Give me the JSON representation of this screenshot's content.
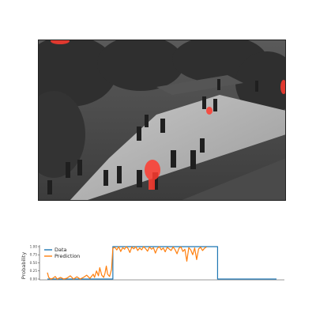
{
  "video_frame": {
    "description_icon": "surveillance-frame",
    "highlight_color": "#ff3b2f"
  },
  "chart_data": {
    "type": "line",
    "title": "",
    "xlabel": "",
    "ylabel": "Probability",
    "ylim": [
      0,
      1
    ],
    "yticks": [
      "0.00",
      "0.25",
      "0.50",
      "0.75",
      "1.00"
    ],
    "legend": {
      "placement": "top-left",
      "entries": [
        "Data",
        "Prediction"
      ]
    },
    "grid": false,
    "x": [
      0,
      1,
      2,
      3,
      4,
      5,
      6,
      7,
      8,
      9,
      10,
      11,
      12,
      13,
      14,
      15,
      16,
      17,
      18,
      19,
      20,
      21,
      22,
      23,
      24,
      25,
      26,
      27,
      28,
      29,
      30,
      31,
      32,
      33,
      34,
      35,
      36,
      37,
      38,
      39,
      40,
      41,
      42,
      43,
      44,
      45,
      46,
      47,
      48,
      49,
      50,
      51,
      52,
      53,
      54,
      55,
      56,
      57,
      58,
      59,
      60,
      61,
      62,
      63,
      64,
      65,
      66,
      67,
      68,
      69,
      70,
      71,
      72,
      73,
      74,
      75,
      76,
      77,
      78,
      79,
      80,
      81,
      82,
      83,
      84,
      85,
      86,
      87,
      88,
      89,
      90,
      91,
      92,
      93,
      94,
      95,
      96,
      97,
      98,
      99,
      100,
      101,
      102,
      103,
      104,
      105,
      106,
      107,
      108,
      109,
      110,
      111,
      112,
      113,
      114,
      115,
      116,
      117,
      118,
      119,
      120,
      121,
      122,
      123,
      124,
      125,
      126,
      127,
      128,
      129,
      130,
      131,
      132,
      133,
      134,
      135,
      136,
      137,
      138,
      139,
      140,
      141,
      142,
      143,
      144,
      145,
      146,
      147,
      148,
      149,
      150,
      151,
      152,
      153,
      154,
      155,
      156,
      157,
      158,
      159,
      160,
      161,
      162,
      163,
      164,
      165,
      166,
      167,
      168,
      169,
      170,
      171,
      172,
      173,
      174,
      175,
      176,
      177,
      178,
      179,
      180,
      181,
      182,
      183,
      184,
      185,
      186,
      187,
      188,
      189,
      190,
      191,
      192,
      193,
      194,
      195,
      196,
      197,
      198,
      199,
      200,
      201,
      202,
      203,
      204,
      205,
      206,
      207,
      208,
      209,
      210,
      211,
      212,
      213,
      214,
      215,
      216,
      217,
      218,
      219,
      220,
      221,
      222,
      223,
      224,
      225,
      226,
      227,
      228,
      229,
      230,
      231,
      232,
      233,
      234,
      235,
      236,
      237,
      238,
      239,
      240,
      241,
      242,
      243,
      244,
      245,
      246,
      247,
      248,
      249,
      250,
      251,
      252,
      253,
      254,
      255,
      256,
      257,
      258,
      259,
      260,
      261,
      262,
      263,
      264,
      265,
      266,
      267,
      268,
      269,
      270,
      271,
      272,
      273,
      274,
      275,
      276,
      277,
      278,
      279,
      280,
      281,
      282,
      283,
      284,
      285,
      286,
      287,
      288,
      289,
      290,
      291,
      292,
      293,
      294,
      295,
      296,
      297,
      298,
      299,
      300,
      301,
      302,
      303,
      304,
      305,
      306,
      307,
      308,
      309,
      310,
      311,
      312,
      313,
      314,
      315,
      316,
      317,
      318,
      319,
      320,
      321,
      322,
      323,
      324,
      325,
      326,
      327,
      328,
      329,
      330,
      331,
      332,
      333,
      334,
      335,
      336,
      337,
      338,
      339,
      340,
      341,
      342,
      343,
      344,
      345,
      346,
      347,
      348,
      349,
      350
    ],
    "series": [
      {
        "name": "Data",
        "color": "#1f77b4",
        "points": [
          [
            0,
            0
          ],
          [
            100,
            0
          ],
          [
            100,
            1
          ],
          [
            260,
            1
          ],
          [
            260,
            0
          ],
          [
            350,
            0
          ]
        ]
      },
      {
        "name": "Prediction",
        "color": "#ff7f0e",
        "points": [
          [
            0,
            0.2
          ],
          [
            2,
            0.05
          ],
          [
            5,
            0
          ],
          [
            8,
            0.02
          ],
          [
            12,
            0.08
          ],
          [
            15,
            0
          ],
          [
            20,
            0.05
          ],
          [
            25,
            0
          ],
          [
            30,
            0.03
          ],
          [
            35,
            0.1
          ],
          [
            40,
            0
          ],
          [
            45,
            0.07
          ],
          [
            50,
            0
          ],
          [
            55,
            0.05
          ],
          [
            60,
            0.12
          ],
          [
            65,
            0.02
          ],
          [
            70,
            0.15
          ],
          [
            72,
            0.05
          ],
          [
            75,
            0.25
          ],
          [
            78,
            0.1
          ],
          [
            80,
            0.35
          ],
          [
            83,
            0.12
          ],
          [
            86,
            0.05
          ],
          [
            88,
            0.18
          ],
          [
            90,
            0.4
          ],
          [
            92,
            0.15
          ],
          [
            95,
            0.08
          ],
          [
            98,
            0.3
          ],
          [
            100,
            0.95
          ],
          [
            103,
            0.98
          ],
          [
            106,
            0.9
          ],
          [
            109,
            1
          ],
          [
            112,
            0.85
          ],
          [
            115,
            0.97
          ],
          [
            118,
            0.92
          ],
          [
            120,
            1
          ],
          [
            123,
            0.95
          ],
          [
            126,
            0.82
          ],
          [
            129,
            0.99
          ],
          [
            132,
            0.93
          ],
          [
            135,
            1
          ],
          [
            138,
            0.88
          ],
          [
            141,
            0.96
          ],
          [
            144,
            0.9
          ],
          [
            147,
            1
          ],
          [
            150,
            0.94
          ],
          [
            153,
            0.86
          ],
          [
            156,
            0.99
          ],
          [
            159,
            0.92
          ],
          [
            162,
            0.97
          ],
          [
            165,
            0.8
          ],
          [
            168,
            0.95
          ],
          [
            171,
            1
          ],
          [
            174,
            0.9
          ],
          [
            177,
            0.96
          ],
          [
            180,
            0.84
          ],
          [
            183,
            0.98
          ],
          [
            186,
            0.93
          ],
          [
            189,
            0.88
          ],
          [
            192,
            0.99
          ],
          [
            195,
            0.91
          ],
          [
            198,
            0.78
          ],
          [
            201,
            0.95
          ],
          [
            204,
            0.99
          ],
          [
            207,
            0.85
          ],
          [
            210,
            0.92
          ],
          [
            213,
            0.55
          ],
          [
            216,
            0.97
          ],
          [
            219,
            0.9
          ],
          [
            222,
            0.75
          ],
          [
            225,
            0.96
          ],
          [
            228,
            0.6
          ],
          [
            231,
            0.93
          ],
          [
            234,
            0.98
          ],
          [
            237,
            0.88
          ],
          [
            240,
            0.95
          ],
          [
            243,
            0.99
          ]
        ]
      }
    ]
  }
}
